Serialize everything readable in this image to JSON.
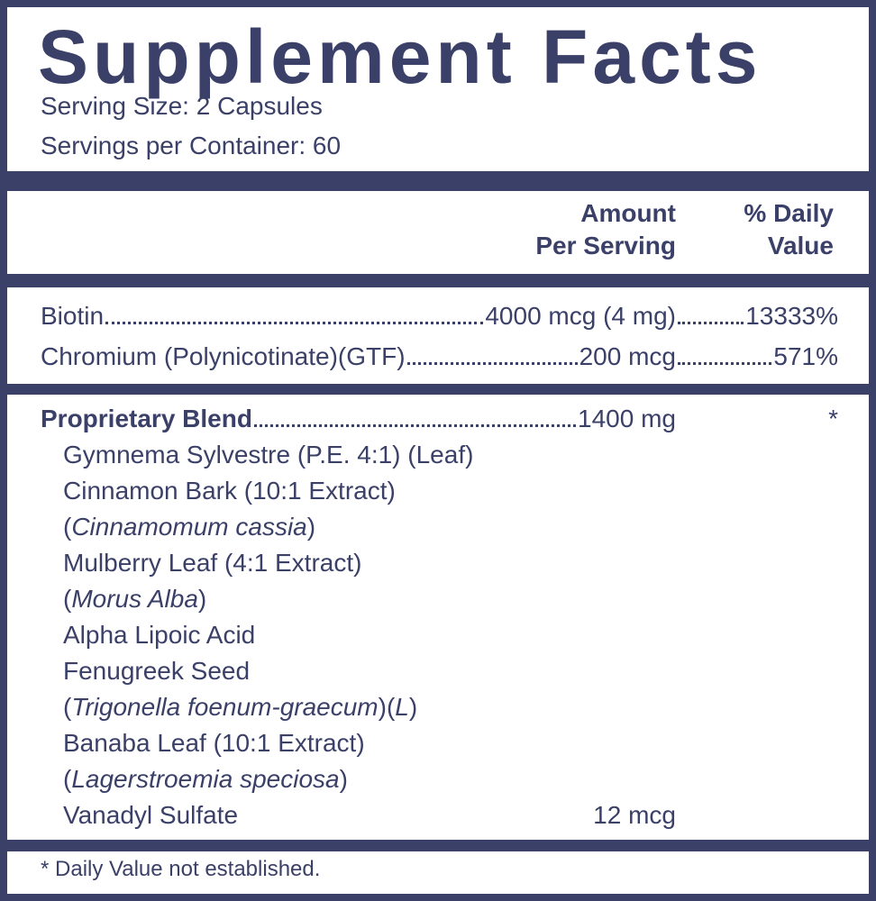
{
  "title": "Supplement Facts",
  "serving_size": "Serving Size: 2 Capsules",
  "servings_per_container": "Servings per Container: 60",
  "header": {
    "amount": [
      "Amount",
      "Per Serving"
    ],
    "daily_value": [
      "% Daily",
      "Value"
    ]
  },
  "nutrients": [
    {
      "name": "Biotin",
      "amount": "4000 mcg (4 mg)",
      "daily_value": "13333%"
    },
    {
      "name": "Chromium (Polynicotinate)(GTF)",
      "amount": "200 mcg",
      "daily_value": "571%"
    }
  ],
  "blend": {
    "name": "Proprietary Blend",
    "amount": "1400 mg",
    "daily_value": "*",
    "ingredients": [
      {
        "name": "Gymnema Sylvestre (P.E. 4:1) (Leaf)"
      },
      {
        "name": "Cinnamon Bark (10:1 Extract)",
        "latin": [
          "(",
          "Cinnamomum cassia",
          ")"
        ]
      },
      {
        "name": "Mulberry Leaf (4:1 Extract)",
        "latin": [
          "(",
          "Morus Alba",
          ")"
        ]
      },
      {
        "name": "Alpha Lipoic Acid"
      },
      {
        "name": "Fenugreek Seed",
        "latin": [
          "(",
          "Trigonella foenum-graecum",
          ")(",
          "L",
          ")"
        ]
      },
      {
        "name": "Banaba Leaf (10:1 Extract)",
        "latin": [
          "(",
          "Lagerstroemia speciosa",
          ")"
        ]
      },
      {
        "name": "Vanadyl Sulfate",
        "amount": "12 mcg"
      }
    ]
  },
  "footnote": "* Daily Value not established."
}
